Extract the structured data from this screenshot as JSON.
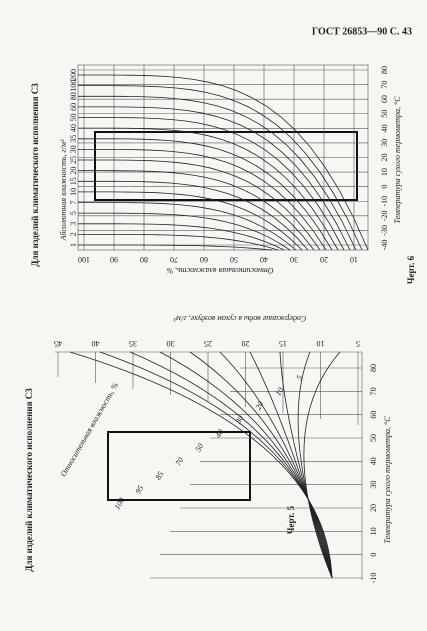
{
  "header": "ГОСТ 26853—90 С. 43",
  "figure6": {
    "title": "Для изделий климатического исполнения С3",
    "abs_humidity_label": "Абсолютная влажность, г/м³",
    "abs_humidity_ticks": [
      "200",
      "100",
      "80",
      "60",
      "50",
      "40",
      "35",
      "30",
      "25",
      "20",
      "15",
      "10",
      "7",
      "5",
      "3",
      "2",
      "1"
    ],
    "rh_label": "Относительная влажность, %",
    "rh_ticks": [
      "100",
      "90",
      "80",
      "70",
      "60",
      "50",
      "40",
      "30",
      "20",
      "10"
    ],
    "temp_label": "Температура сухого термометра, °С",
    "temp_ticks": [
      "80",
      "70",
      "60",
      "50",
      "40",
      "30",
      "20",
      "10",
      "0",
      "-10",
      "-20",
      "-30",
      "-40"
    ],
    "caption": "Черт. 6"
  },
  "figure5": {
    "title": "Для изделий климатического исполнения С3",
    "water_label": "Содержание воды в сухом воздухе, г/м³",
    "water_ticks": [
      "45",
      "40",
      "35",
      "30",
      "25",
      "20",
      "15",
      "10",
      "5"
    ],
    "rh_label": "Относительная влажность, %",
    "rh_curves": [
      "5",
      "10",
      "20",
      "30",
      "40",
      "50",
      "70",
      "85",
      "95",
      "100"
    ],
    "temp_label": "Температура сухого термометра, °С",
    "temp_ticks": [
      "80",
      "70",
      "60",
      "50",
      "40",
      "30",
      "20",
      "10",
      "0",
      "-10"
    ],
    "caption": "Черт. 5"
  }
}
